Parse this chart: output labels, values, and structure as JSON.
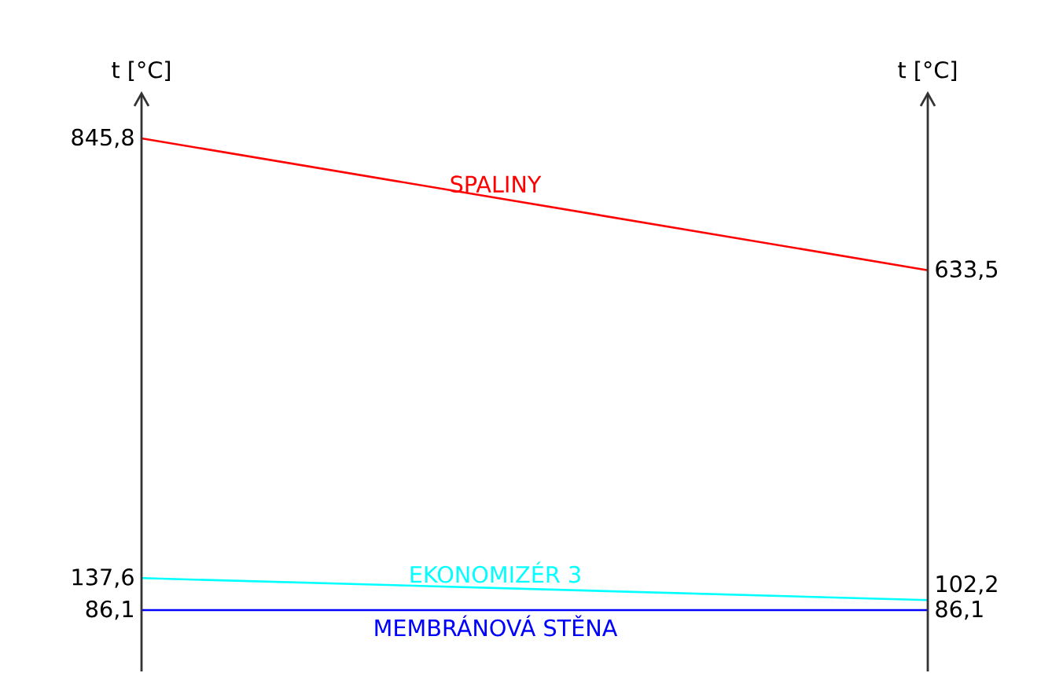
{
  "chart_data": {
    "type": "line",
    "ylabel": "t [°C]",
    "y2label": "t [°C]",
    "categories": [
      null,
      null
    ],
    "series": [
      {
        "name": "SPALINY",
        "color": "#ff0000",
        "values": [
          845.8,
          633.5
        ],
        "value_labels": [
          "845,8",
          "633,5"
        ]
      },
      {
        "name": "EKONOMIZÉR 3",
        "color": "#00ffff",
        "values": [
          137.6,
          102.2
        ],
        "value_labels": [
          "137,6",
          "102,2"
        ]
      },
      {
        "name": "MEMBRÁNOVÁ STĚNA",
        "color": "#0000ff",
        "values": [
          86.1,
          86.1
        ],
        "value_labels": [
          "86,1",
          "86,1"
        ]
      }
    ]
  }
}
